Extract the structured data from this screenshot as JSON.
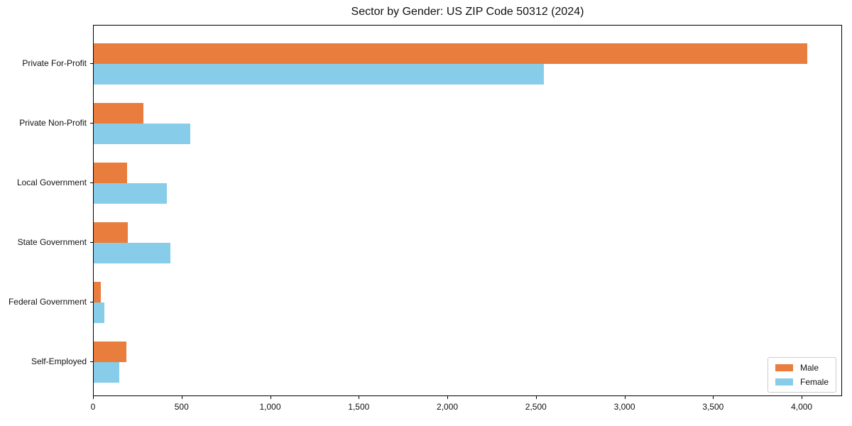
{
  "title": "Sector by Gender: US ZIP Code 50312 (2024)",
  "colors": {
    "male": "#e87d3d",
    "female": "#87cde9",
    "axis": "#000000",
    "text": "#111111",
    "legend_border": "#cccccc",
    "background": "#ffffff"
  },
  "legend": {
    "position": "lower right",
    "items": [
      "Male",
      "Female"
    ]
  },
  "chart_data": {
    "type": "bar",
    "orientation": "horizontal",
    "title": "Sector by Gender: US ZIP Code 50312 (2024)",
    "categories": [
      "Private For-Profit",
      "Private Non-Profit",
      "Local Government",
      "State Government",
      "Federal Government",
      "Self-Employed"
    ],
    "series": [
      {
        "name": "Male",
        "color": "#e87d3d",
        "values": [
          4026,
          281,
          190,
          192,
          40,
          184
        ]
      },
      {
        "name": "Female",
        "color": "#87cde9",
        "values": [
          2541,
          544,
          413,
          433,
          61,
          144
        ]
      }
    ],
    "xlabel": "",
    "ylabel": "",
    "xlim": [
      0,
      4228
    ],
    "xticks": [
      0,
      500,
      1000,
      1500,
      2000,
      2500,
      3000,
      3500,
      4000
    ],
    "xtick_labels": [
      "0",
      "500",
      "1,000",
      "1,500",
      "2,000",
      "2,500",
      "3,000",
      "3,500",
      "4,000"
    ],
    "grid": false,
    "legend_position": "lower right"
  }
}
